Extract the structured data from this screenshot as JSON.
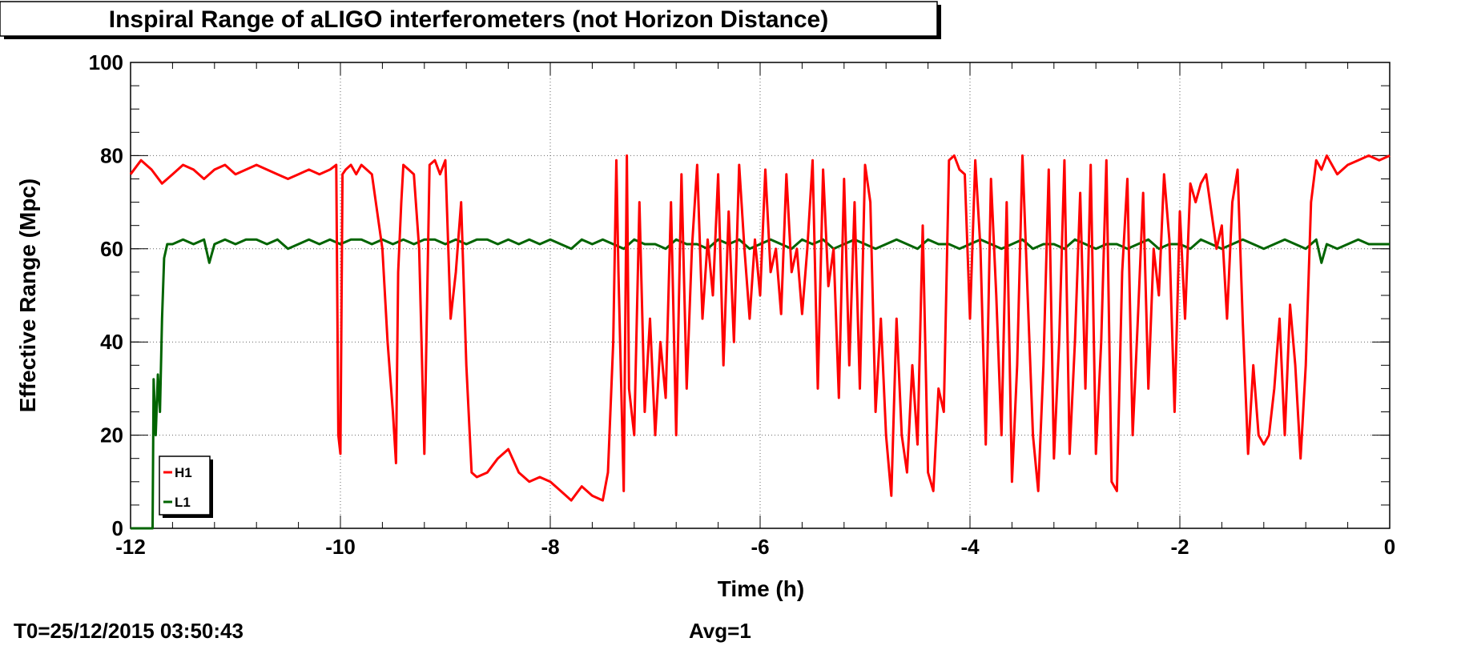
{
  "chart_data": {
    "type": "line",
    "title": "Inspiral Range of aLIGO interferometers (not Horizon Distance)",
    "xlabel": "Time (h)",
    "ylabel": "Effective Range (Mpc)",
    "xlim": [
      -12,
      0
    ],
    "ylim": [
      0,
      100
    ],
    "xticks": [
      "-12",
      "-10",
      "-8",
      "-6",
      "-4",
      "-2",
      "0"
    ],
    "yticks": [
      "0",
      "20",
      "40",
      "60",
      "80",
      "100"
    ],
    "grid": true,
    "legend_position": "bottom-left",
    "footer_left": "T0=25/12/2015 03:50:43",
    "footer_center": "Avg=1",
    "series": [
      {
        "name": "H1",
        "color": "#ff0000",
        "x": [
          -12.0,
          -11.9,
          -11.8,
          -11.7,
          -11.6,
          -11.5,
          -11.4,
          -11.3,
          -11.2,
          -11.1,
          -11.0,
          -10.9,
          -10.8,
          -10.7,
          -10.6,
          -10.5,
          -10.4,
          -10.3,
          -10.2,
          -10.1,
          -10.04,
          -10.02,
          -10.0,
          -9.98,
          -9.95,
          -9.9,
          -9.85,
          -9.8,
          -9.75,
          -9.7,
          -9.6,
          -9.55,
          -9.5,
          -9.47,
          -9.45,
          -9.42,
          -9.4,
          -9.35,
          -9.3,
          -9.25,
          -9.2,
          -9.15,
          -9.1,
          -9.05,
          -9.0,
          -8.95,
          -8.9,
          -8.85,
          -8.8,
          -8.75,
          -8.7,
          -8.6,
          -8.5,
          -8.4,
          -8.3,
          -8.2,
          -8.1,
          -8.0,
          -7.9,
          -7.8,
          -7.7,
          -7.6,
          -7.5,
          -7.45,
          -7.4,
          -7.37,
          -7.35,
          -7.3,
          -7.27,
          -7.25,
          -7.2,
          -7.15,
          -7.1,
          -7.05,
          -7.0,
          -6.95,
          -6.9,
          -6.85,
          -6.8,
          -6.75,
          -6.7,
          -6.65,
          -6.6,
          -6.55,
          -6.5,
          -6.45,
          -6.4,
          -6.35,
          -6.3,
          -6.25,
          -6.2,
          -6.15,
          -6.1,
          -6.05,
          -6.0,
          -5.95,
          -5.9,
          -5.85,
          -5.8,
          -5.75,
          -5.7,
          -5.65,
          -5.6,
          -5.55,
          -5.5,
          -5.45,
          -5.4,
          -5.35,
          -5.3,
          -5.25,
          -5.2,
          -5.15,
          -5.1,
          -5.05,
          -5.0,
          -4.95,
          -4.9,
          -4.85,
          -4.8,
          -4.75,
          -4.7,
          -4.65,
          -4.6,
          -4.55,
          -4.5,
          -4.45,
          -4.4,
          -4.35,
          -4.3,
          -4.25,
          -4.2,
          -4.15,
          -4.1,
          -4.05,
          -4.0,
          -3.95,
          -3.9,
          -3.85,
          -3.8,
          -3.75,
          -3.7,
          -3.65,
          -3.6,
          -3.55,
          -3.5,
          -3.45,
          -3.4,
          -3.35,
          -3.3,
          -3.25,
          -3.2,
          -3.15,
          -3.1,
          -3.05,
          -3.0,
          -2.95,
          -2.9,
          -2.85,
          -2.8,
          -2.75,
          -2.7,
          -2.65,
          -2.6,
          -2.55,
          -2.5,
          -2.45,
          -2.4,
          -2.35,
          -2.3,
          -2.25,
          -2.2,
          -2.15,
          -2.1,
          -2.05,
          -2.0,
          -1.95,
          -1.9,
          -1.85,
          -1.8,
          -1.75,
          -1.7,
          -1.65,
          -1.6,
          -1.55,
          -1.5,
          -1.45,
          -1.4,
          -1.35,
          -1.3,
          -1.25,
          -1.2,
          -1.15,
          -1.1,
          -1.05,
          -1.0,
          -0.95,
          -0.9,
          -0.85,
          -0.8,
          -0.75,
          -0.7,
          -0.65,
          -0.6,
          -0.5,
          -0.4,
          -0.3,
          -0.2,
          -0.1,
          0.0
        ],
        "values": [
          76,
          79,
          77,
          74,
          76,
          78,
          77,
          75,
          77,
          78,
          76,
          77,
          78,
          77,
          76,
          75,
          76,
          77,
          76,
          77,
          78,
          20,
          16,
          76,
          77,
          78,
          76,
          78,
          77,
          76,
          60,
          40,
          25,
          14,
          55,
          70,
          78,
          77,
          76,
          60,
          16,
          78,
          79,
          76,
          79,
          45,
          55,
          70,
          35,
          12,
          11,
          12,
          15,
          17,
          12,
          10,
          11,
          10,
          8,
          6,
          9,
          7,
          6,
          12,
          40,
          79,
          55,
          8,
          80,
          30,
          20,
          70,
          25,
          45,
          20,
          40,
          28,
          70,
          20,
          76,
          30,
          60,
          78,
          45,
          62,
          50,
          76,
          35,
          68,
          40,
          78,
          60,
          45,
          62,
          50,
          77,
          55,
          60,
          46,
          76,
          55,
          60,
          46,
          60,
          79,
          30,
          77,
          52,
          60,
          28,
          75,
          35,
          70,
          30,
          78,
          70,
          25,
          45,
          20,
          7,
          45,
          20,
          12,
          35,
          18,
          65,
          12,
          8,
          30,
          25,
          79,
          80,
          77,
          76,
          45,
          79,
          60,
          18,
          75,
          50,
          20,
          70,
          10,
          35,
          80,
          50,
          20,
          8,
          35,
          77,
          15,
          40,
          79,
          16,
          40,
          72,
          30,
          78,
          16,
          40,
          79,
          10,
          8,
          55,
          75,
          20,
          45,
          72,
          30,
          60,
          50,
          76,
          62,
          25,
          68,
          45,
          74,
          70,
          74,
          76,
          68,
          60,
          65,
          45,
          70,
          77,
          44,
          16,
          35,
          20,
          18,
          20,
          30,
          45,
          20,
          48,
          35,
          15,
          35,
          70,
          79,
          77,
          80,
          76,
          78,
          79,
          80,
          79,
          80
        ]
      },
      {
        "name": "L1",
        "color": "#006400",
        "x": [
          -12.0,
          -11.9,
          -11.79,
          -11.78,
          -11.76,
          -11.74,
          -11.72,
          -11.7,
          -11.68,
          -11.65,
          -11.6,
          -11.5,
          -11.4,
          -11.3,
          -11.25,
          -11.2,
          -11.1,
          -11.0,
          -10.9,
          -10.8,
          -10.7,
          -10.6,
          -10.5,
          -10.4,
          -10.3,
          -10.2,
          -10.1,
          -10.0,
          -9.9,
          -9.8,
          -9.7,
          -9.6,
          -9.5,
          -9.4,
          -9.3,
          -9.2,
          -9.1,
          -9.0,
          -8.9,
          -8.8,
          -8.7,
          -8.6,
          -8.5,
          -8.4,
          -8.3,
          -8.2,
          -8.1,
          -8.0,
          -7.9,
          -7.8,
          -7.7,
          -7.6,
          -7.5,
          -7.4,
          -7.3,
          -7.2,
          -7.1,
          -7.0,
          -6.9,
          -6.8,
          -6.7,
          -6.6,
          -6.5,
          -6.4,
          -6.3,
          -6.2,
          -6.1,
          -6.0,
          -5.9,
          -5.8,
          -5.7,
          -5.6,
          -5.5,
          -5.4,
          -5.3,
          -5.2,
          -5.1,
          -5.0,
          -4.9,
          -4.8,
          -4.7,
          -4.6,
          -4.5,
          -4.4,
          -4.3,
          -4.2,
          -4.1,
          -4.0,
          -3.9,
          -3.8,
          -3.7,
          -3.6,
          -3.5,
          -3.4,
          -3.3,
          -3.2,
          -3.1,
          -3.0,
          -2.9,
          -2.8,
          -2.7,
          -2.6,
          -2.5,
          -2.4,
          -2.3,
          -2.2,
          -2.1,
          -2.0,
          -1.9,
          -1.8,
          -1.7,
          -1.6,
          -1.5,
          -1.4,
          -1.3,
          -1.2,
          -1.1,
          -1.0,
          -0.9,
          -0.8,
          -0.7,
          -0.65,
          -0.6,
          -0.5,
          -0.4,
          -0.3,
          -0.2,
          -0.1,
          0.0
        ],
        "values": [
          0,
          0,
          0,
          32,
          20,
          33,
          25,
          45,
          58,
          61,
          61,
          62,
          61,
          62,
          57,
          61,
          62,
          61,
          62,
          62,
          61,
          62,
          60,
          61,
          62,
          61,
          62,
          61,
          62,
          62,
          61,
          62,
          61,
          62,
          61,
          62,
          62,
          61,
          62,
          61,
          62,
          62,
          61,
          62,
          61,
          62,
          61,
          62,
          61,
          60,
          62,
          61,
          62,
          61,
          60,
          62,
          61,
          61,
          60,
          62,
          61,
          61,
          60,
          62,
          61,
          62,
          60,
          61,
          62,
          61,
          60,
          62,
          61,
          62,
          60,
          61,
          62,
          61,
          60,
          61,
          62,
          61,
          60,
          62,
          61,
          61,
          60,
          61,
          62,
          61,
          60,
          61,
          62,
          60,
          61,
          61,
          60,
          62,
          61,
          60,
          61,
          61,
          60,
          61,
          62,
          60,
          61,
          61,
          60,
          62,
          61,
          60,
          61,
          62,
          61,
          60,
          61,
          62,
          61,
          60,
          62,
          57,
          61,
          60,
          61,
          62,
          61,
          61,
          61
        ]
      }
    ]
  }
}
